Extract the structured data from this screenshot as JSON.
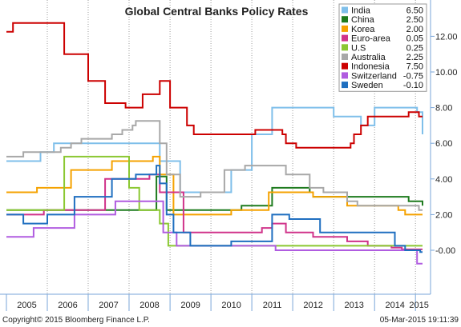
{
  "chart_data": {
    "type": "line",
    "title": "Global Central Banks Policy Rates",
    "xlabel": "",
    "ylabel": "",
    "x_range": [
      "2005-01-01",
      "2015-03-05"
    ],
    "ylim": [
      -1.5,
      14.5
    ],
    "y_ticks": [
      -0.0,
      2.0,
      4.0,
      6.0,
      8.0,
      10.0,
      12.0
    ],
    "y_tick_labels": [
      "-0.00",
      "2.00",
      "4.00",
      "6.00",
      "8.00",
      "10.00",
      "12.00"
    ],
    "x_tick_labels": [
      "2005",
      "2006",
      "2007",
      "2008",
      "2009",
      "2010",
      "2011",
      "2012",
      "2013",
      "2014",
      "2015"
    ],
    "y_axis_side": "right",
    "grid": "vertical dotted",
    "legend_placement": "top-right",
    "series": [
      {
        "name": "India",
        "color": "#7fbfea",
        "last": "6.50",
        "x": [
          "2005-01-01",
          "2005-11-01",
          "2006-03-01",
          "2007-03-01",
          "2008-06-01",
          "2008-10-01",
          "2009-04-01",
          "2010-02-01",
          "2010-07-01",
          "2011-01-01",
          "2011-07-01",
          "2012-04-01",
          "2013-01-01",
          "2013-09-01",
          "2014-01-01",
          "2015-01-15",
          "2015-03-05"
        ],
        "y": [
          5.0,
          5.5,
          6.0,
          6.0,
          6.0,
          5.0,
          3.25,
          3.25,
          4.5,
          6.5,
          8.0,
          8.0,
          7.5,
          7.0,
          8.0,
          7.75,
          6.5
        ]
      },
      {
        "name": "China",
        "color": "#1e7b1e",
        "last": "2.50",
        "x": [
          "2005-01-01",
          "2007-09-01",
          "2008-09-01",
          "2008-12-01",
          "2010-10-01",
          "2011-07-01",
          "2012-06-01",
          "2012-07-01",
          "2014-11-01",
          "2015-03-05"
        ],
        "y": [
          2.25,
          2.25,
          4.14,
          2.25,
          2.5,
          3.5,
          3.25,
          3.0,
          2.75,
          2.5
        ]
      },
      {
        "name": "Korea",
        "color": "#f5a200",
        "last": "2.00",
        "x": [
          "2005-01-01",
          "2005-10-01",
          "2006-08-01",
          "2007-08-01",
          "2008-08-01",
          "2008-10-01",
          "2009-02-01",
          "2010-07-01",
          "2011-06-01",
          "2012-07-01",
          "2013-05-01",
          "2014-08-01",
          "2014-10-01",
          "2015-03-05"
        ],
        "y": [
          3.25,
          3.5,
          4.5,
          5.0,
          5.25,
          4.25,
          2.0,
          2.25,
          3.25,
          3.0,
          2.5,
          2.25,
          2.0,
          2.0
        ]
      },
      {
        "name": "Euro-area",
        "color": "#d0338a",
        "last": "0.05",
        "x": [
          "2005-01-01",
          "2005-12-01",
          "2007-06-01",
          "2008-07-01",
          "2008-10-01",
          "2009-05-01",
          "2011-04-01",
          "2011-07-01",
          "2011-11-01",
          "2012-07-01",
          "2013-05-01",
          "2013-11-01",
          "2014-06-01",
          "2014-09-01",
          "2015-03-05"
        ],
        "y": [
          2.0,
          2.25,
          4.0,
          4.25,
          3.25,
          1.0,
          1.25,
          1.5,
          1.0,
          0.75,
          0.5,
          0.25,
          0.15,
          0.05,
          0.05
        ]
      },
      {
        "name": "U.S",
        "color": "#8bc832",
        "last": "0.25",
        "x": [
          "2005-01-01",
          "2006-06-01",
          "2007-09-01",
          "2008-01-01",
          "2008-04-01",
          "2008-10-01",
          "2008-12-16",
          "2015-03-05"
        ],
        "y": [
          2.25,
          5.25,
          5.25,
          3.5,
          2.25,
          1.5,
          0.25,
          0.25
        ]
      },
      {
        "name": "Australia",
        "color": "#a8a8a8",
        "last": "2.25",
        "x": [
          "2005-01-01",
          "2005-06-01",
          "2006-05-01",
          "2006-08-01",
          "2006-11-01",
          "2007-08-01",
          "2007-11-01",
          "2008-02-01",
          "2008-03-01",
          "2008-09-01",
          "2008-10-01",
          "2008-12-01",
          "2009-04-01",
          "2009-10-01",
          "2010-05-01",
          "2010-11-01",
          "2011-11-01",
          "2012-06-01",
          "2012-10-01",
          "2013-05-01",
          "2013-08-01",
          "2015-02-01",
          "2015-03-05"
        ],
        "y": [
          5.25,
          5.5,
          5.75,
          6.0,
          6.25,
          6.5,
          6.75,
          7.0,
          7.25,
          7.25,
          6.0,
          4.25,
          3.0,
          3.25,
          4.5,
          4.75,
          4.25,
          3.5,
          3.25,
          2.75,
          2.5,
          2.25,
          2.25
        ]
      },
      {
        "name": "Indonesia",
        "color": "#cc0000",
        "last": "7.50",
        "x": [
          "2005-01-01",
          "2005-03-01",
          "2006-01-01",
          "2006-06-01",
          "2007-01-01",
          "2007-06-01",
          "2007-12-01",
          "2008-05-01",
          "2008-10-01",
          "2009-01-01",
          "2009-06-01",
          "2009-08-01",
          "2011-01-01",
          "2011-02-01",
          "2011-10-01",
          "2011-11-01",
          "2012-02-01",
          "2013-06-01",
          "2013-07-01",
          "2013-09-01",
          "2013-11-01",
          "2014-11-01",
          "2015-02-01",
          "2015-03-05"
        ],
        "y": [
          12.25,
          12.75,
          12.75,
          11.0,
          9.5,
          8.25,
          8.0,
          8.75,
          9.5,
          8.0,
          7.0,
          6.5,
          6.5,
          6.75,
          6.5,
          6.0,
          5.75,
          6.0,
          6.5,
          7.0,
          7.5,
          7.75,
          7.5,
          7.5
        ]
      },
      {
        "name": "Switzerland",
        "color": "#b05ce0",
        "last": "-0.75",
        "x": [
          "2005-01-01",
          "2005-09-01",
          "2006-09-01",
          "2007-09-01",
          "2008-07-01",
          "2008-11-01",
          "2009-03-01",
          "2011-08-01",
          "2014-12-01",
          "2015-01-15",
          "2015-03-05"
        ],
        "y": [
          0.75,
          1.25,
          2.0,
          2.75,
          2.75,
          1.0,
          0.25,
          0.0,
          0.0,
          -0.75,
          -0.75
        ]
      },
      {
        "name": "Sweden",
        "color": "#1f6fc0",
        "last": "-0.10",
        "x": [
          "2005-01-01",
          "2005-06-01",
          "2006-01-01",
          "2006-09-01",
          "2007-08-01",
          "2008-03-01",
          "2008-09-01",
          "2008-10-01",
          "2008-12-01",
          "2009-02-01",
          "2009-07-01",
          "2010-07-01",
          "2011-07-01",
          "2011-12-01",
          "2012-09-01",
          "2013-01-01",
          "2014-07-01",
          "2014-10-01",
          "2015-02-12",
          "2015-03-05"
        ],
        "y": [
          2.0,
          1.5,
          2.0,
          3.0,
          4.0,
          4.25,
          4.75,
          3.75,
          2.0,
          1.0,
          0.25,
          0.5,
          2.0,
          1.75,
          1.0,
          1.0,
          0.25,
          0.0,
          -0.1,
          -0.1
        ]
      }
    ]
  },
  "footer": {
    "copyright": "Copyright© 2015 Bloomberg Finance L.P.",
    "timestamp": "05-Mar-2015 19:11:39"
  }
}
